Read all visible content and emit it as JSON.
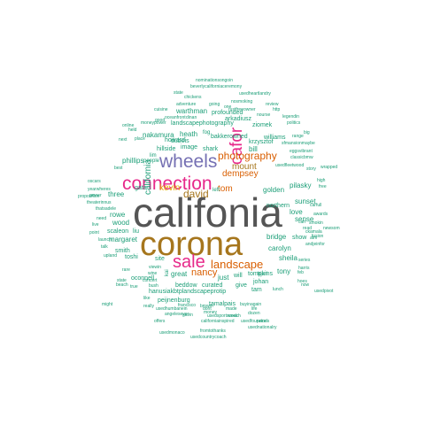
{
  "palette": {
    "teal": "#1b9e77",
    "gray": "#555555",
    "gold": "#a6761d",
    "magenta": "#e7298a",
    "orange": "#d95f02",
    "purple": "#7570b3",
    "green": "#66a61e",
    "yellow": "#e6ab02"
  },
  "words": [
    {
      "text": "califonia",
      "color": "#555555"
    },
    {
      "text": "corona",
      "color": "#a6761d"
    },
    {
      "text": "wheels",
      "color": "#7570b3"
    },
    {
      "text": "connection",
      "color": "#e7298a"
    },
    {
      "text": "sale",
      "color": "#e7298a"
    },
    {
      "text": "cafor",
      "color": "#e7298a"
    },
    {
      "text": "landscape",
      "color": "#d95f02"
    },
    {
      "text": "photography",
      "color": "#d95f02"
    },
    {
      "text": "kevin",
      "color": "#e6ab02"
    },
    {
      "text": "david",
      "color": "#a6761d"
    },
    {
      "text": "tom",
      "color": "#d95f02"
    },
    {
      "text": "nancy",
      "color": "#d95f02"
    },
    {
      "text": "dempsey",
      "color": "#d95f02"
    },
    {
      "text": "mount",
      "color": "#a6761d"
    },
    {
      "text": "california",
      "color": "#1b9e77"
    },
    {
      "text": "golden",
      "color": "#1b9e77"
    },
    {
      "text": "bill",
      "color": "#1b9e77"
    },
    {
      "text": "krzysztof",
      "color": "#1b9e77"
    },
    {
      "text": "pilasky",
      "color": "#1b9e77"
    },
    {
      "text": "sunset",
      "color": "#1b9e77"
    },
    {
      "text": "love",
      "color": "#1b9e77"
    },
    {
      "text": "sense",
      "color": "#1b9e77"
    },
    {
      "text": "northern",
      "color": "#1b9e77"
    },
    {
      "text": "bridge",
      "color": "#1b9e77"
    },
    {
      "text": "carolyn",
      "color": "#1b9e77"
    },
    {
      "text": "sheila",
      "color": "#1b9e77"
    },
    {
      "text": "tony",
      "color": "#1b9e77"
    },
    {
      "text": "show",
      "color": "#1b9e77"
    },
    {
      "text": "tompkins",
      "color": "#1b9e77"
    },
    {
      "text": "johan",
      "color": "#1b9e77"
    },
    {
      "text": "hjerl",
      "color": "#1b9e77"
    },
    {
      "text": "give",
      "color": "#1b9e77"
    },
    {
      "text": "tam",
      "color": "#1b9e77"
    },
    {
      "text": "just",
      "color": "#1b9e77"
    },
    {
      "text": "will",
      "color": "#1b9e77"
    },
    {
      "text": "great",
      "color": "#1b9e77"
    },
    {
      "text": "beddow",
      "color": "#1b9e77"
    },
    {
      "text": "curated",
      "color": "#1b9e77"
    },
    {
      "text": "hanusiakbtplandscapeprotip",
      "color": "#1b9e77"
    },
    {
      "text": "peijnenburg",
      "color": "#1b9e77"
    },
    {
      "text": "tamalpais",
      "color": "#1b9e77"
    },
    {
      "text": "oconnell",
      "color": "#1b9e77"
    },
    {
      "text": "site",
      "color": "#1b9e77"
    },
    {
      "text": "margaret",
      "color": "#1b9e77"
    },
    {
      "text": "smith",
      "color": "#1b9e77"
    },
    {
      "text": "toshi",
      "color": "#1b9e77"
    },
    {
      "text": "rowe",
      "color": "#1b9e77"
    },
    {
      "text": "wood",
      "color": "#1b9e77"
    },
    {
      "text": "scaleon",
      "color": "#1b9e77"
    },
    {
      "text": "liu",
      "color": "#1b9e77"
    },
    {
      "text": "three",
      "color": "#1b9e77"
    },
    {
      "text": "gate",
      "color": "#1b9e77"
    },
    {
      "text": "phillips",
      "color": "#1b9e77"
    },
    {
      "text": "nakamura",
      "color": "#1b9e77"
    },
    {
      "text": "howard",
      "color": "#1b9e77"
    },
    {
      "text": "heath",
      "color": "#1b9e77"
    },
    {
      "text": "dubois",
      "color": "#1b9e77"
    },
    {
      "text": "hillside",
      "color": "#1b9e77"
    },
    {
      "text": "image",
      "color": "#1b9e77"
    },
    {
      "text": "shark",
      "color": "#1b9e77"
    },
    {
      "text": "bakkerowned",
      "color": "#1b9e77"
    },
    {
      "text": "williams",
      "color": "#1b9e77"
    },
    {
      "text": "warthman",
      "color": "#1b9e77"
    },
    {
      "text": "landscapephotography",
      "color": "#1b9e77"
    },
    {
      "text": "profounded",
      "color": "#1b9e77"
    },
    {
      "text": "arkadiusz",
      "color": "#1b9e77"
    },
    {
      "text": "fog",
      "color": "#1b9e77"
    },
    {
      "text": "ziomek",
      "color": "#1b9e77"
    },
    {
      "text": "cuisine",
      "color": "#1b9e77"
    },
    {
      "text": "adventure",
      "color": "#1b9e77"
    },
    {
      "text": "chickens",
      "color": "#1b9e77"
    },
    {
      "text": "state",
      "color": "#1b9e77"
    },
    {
      "text": "beverlycaliforniaceremony",
      "color": "#1b9e77"
    },
    {
      "text": "nominationsongoin",
      "color": "#1b9e77"
    },
    {
      "text": "usedheartlandry",
      "color": "#1b9e77"
    },
    {
      "text": "moneypower",
      "color": "#1b9e77"
    },
    {
      "text": "oceanfront",
      "color": "#1b9e77"
    },
    {
      "text": "dinan",
      "color": "#1b9e77"
    },
    {
      "text": "nosmoking",
      "color": "#1b9e77"
    },
    {
      "text": "rustfreeowner",
      "color": "#1b9e77"
    },
    {
      "text": "going",
      "color": "#1b9e77"
    },
    {
      "text": "one",
      "color": "#1b9e77"
    },
    {
      "text": "nourse",
      "color": "#1b9e77"
    },
    {
      "text": "legendin",
      "color": "#1b9e77"
    },
    {
      "text": "review",
      "color": "#1b9e77"
    },
    {
      "text": "http",
      "color": "#1b9e77"
    },
    {
      "text": "politics",
      "color": "#1b9e77"
    },
    {
      "text": "big",
      "color": "#1b9e77"
    },
    {
      "text": "sfmansionmaybe",
      "color": "#1b9e77"
    },
    {
      "text": "eggsvibrant",
      "color": "#1b9e77"
    },
    {
      "text": "classicbmw",
      "color": "#1b9e77"
    },
    {
      "text": "story",
      "color": "#1b9e77"
    },
    {
      "text": "high",
      "color": "#1b9e77"
    },
    {
      "text": "free",
      "color": "#1b9e77"
    },
    {
      "text": "wrapped",
      "color": "#1b9e77"
    },
    {
      "text": "awards",
      "color": "#1b9e77"
    },
    {
      "text": "carfull",
      "color": "#1b9e77"
    },
    {
      "text": "read",
      "color": "#1b9e77"
    },
    {
      "text": "newsom",
      "color": "#1b9e77"
    },
    {
      "text": "can",
      "color": "#1b9e77"
    },
    {
      "text": "smokin",
      "color": "#1b9e77"
    },
    {
      "text": "ckamala",
      "color": "#1b9e77"
    },
    {
      "text": "atm",
      "color": "#1b9e77"
    },
    {
      "text": "andjeinfor",
      "color": "#1b9e77"
    },
    {
      "text": "fusion",
      "color": "#1b9e77"
    },
    {
      "text": "series",
      "color": "#1b9e77"
    },
    {
      "text": "harris",
      "color": "#1b9e77"
    },
    {
      "text": "hoes",
      "color": "#1b9e77"
    },
    {
      "text": "usedpivot",
      "color": "#1b9e77"
    },
    {
      "text": "usedfleetwood",
      "color": "#1b9e77"
    },
    {
      "text": "range",
      "color": "#1b9e77"
    },
    {
      "text": "online",
      "color": "#1b9e77"
    },
    {
      "text": "good",
      "color": "#1b9e77"
    },
    {
      "text": "place",
      "color": "#1b9e77"
    },
    {
      "text": "next",
      "color": "#1b9e77"
    },
    {
      "text": "held",
      "color": "#1b9e77"
    },
    {
      "text": "best",
      "color": "#1b9e77"
    },
    {
      "text": "oscars",
      "color": "#1b9e77"
    },
    {
      "text": "power",
      "color": "#1b9e77"
    },
    {
      "text": "yearwheres",
      "color": "#1b9e77"
    },
    {
      "text": "proposition",
      "color": "#1b9e77"
    },
    {
      "text": "theaterinnus",
      "color": "#1b9e77"
    },
    {
      "text": "thatsadele",
      "color": "#1b9e77"
    },
    {
      "text": "need",
      "color": "#1b9e77"
    },
    {
      "text": "live",
      "color": "#1b9e77"
    },
    {
      "text": "point",
      "color": "#1b9e77"
    },
    {
      "text": "launch",
      "color": "#1b9e77"
    },
    {
      "text": "talk",
      "color": "#1b9e77"
    },
    {
      "text": "upland",
      "color": "#1b9e77"
    },
    {
      "text": "state",
      "color": "#1b9e77"
    },
    {
      "text": "concert",
      "color": "#1b9e77"
    },
    {
      "text": "beach",
      "color": "#1b9e77"
    },
    {
      "text": "true",
      "color": "#1b9e77"
    },
    {
      "text": "bush",
      "color": "#1b9e77"
    },
    {
      "text": "like",
      "color": "#1b9e77"
    },
    {
      "text": "really",
      "color": "#1b9e77"
    },
    {
      "text": "might",
      "color": "#1b9e77"
    },
    {
      "text": "usedhumbanein",
      "color": "#1b9e77"
    },
    {
      "text": "angelesever",
      "color": "#1b9e77"
    },
    {
      "text": "gavin",
      "color": "#1b9e77"
    },
    {
      "text": "offers",
      "color": "#1b9e77"
    },
    {
      "text": "californiainspired",
      "color": "#1b9e77"
    },
    {
      "text": "fromtothanks",
      "color": "#1b9e77"
    },
    {
      "text": "usedmonaco",
      "color": "#1b9e77"
    },
    {
      "text": "usedcountrycoach",
      "color": "#1b9e77"
    },
    {
      "text": "usednationalry",
      "color": "#1b9e77"
    },
    {
      "text": "usedsportscoach",
      "color": "#1b9e77"
    },
    {
      "text": "week",
      "color": "#1b9e77"
    },
    {
      "text": "dont",
      "color": "#1b9e77"
    },
    {
      "text": "made",
      "color": "#1b9e77"
    },
    {
      "text": "money",
      "color": "#1b9e77"
    },
    {
      "text": "francisco",
      "color": "#1b9e77"
    },
    {
      "text": "bmwm",
      "color": "#1b9e77"
    },
    {
      "text": "life",
      "color": "#1b9e77"
    },
    {
      "text": "dozen",
      "color": "#1b9e77"
    },
    {
      "text": "buyinagain",
      "color": "#1b9e77"
    },
    {
      "text": "usedfourwinds",
      "color": "#1b9e77"
    },
    {
      "text": "price",
      "color": "#1b9e77"
    },
    {
      "text": "viewin",
      "color": "#1b9e77"
    },
    {
      "text": "lunch",
      "color": "#1b9e77"
    },
    {
      "text": "feb",
      "color": "#1b9e77"
    },
    {
      "text": "now",
      "color": "#1b9e77"
    },
    {
      "text": "wine",
      "color": "#1b9e77"
    },
    {
      "text": "rare",
      "color": "#1b9e77"
    },
    {
      "text": "peeple",
      "color": "#1b9e77"
    },
    {
      "text": "lim",
      "color": "#1b9e77"
    },
    {
      "text": "left",
      "color": "#1b9e77"
    },
    {
      "text": "kai",
      "color": "#1b9e77"
    },
    {
      "text": "people",
      "color": "#1b9e77"
    }
  ]
}
